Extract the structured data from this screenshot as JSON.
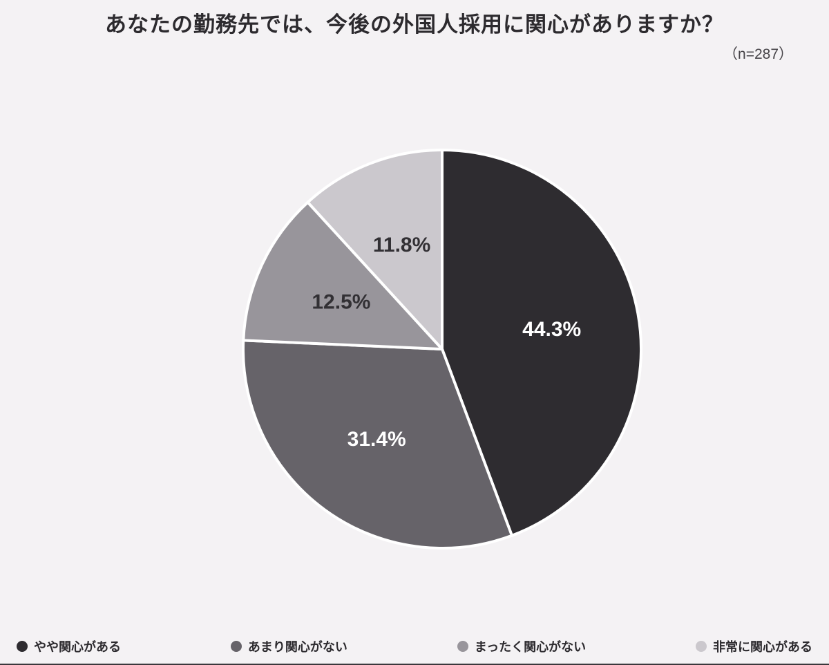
{
  "page": {
    "background_color": "#f4f2f4"
  },
  "header": {
    "title": "あなたの勤務先では、今後の外国人採用に関心がありますか？",
    "sample_size": "（n=287）"
  },
  "chart_data": {
    "type": "pie",
    "title": "あなたの勤務先では、今後の外国人採用に関心がありますか？",
    "annotation": "（n=287）",
    "labels": [
      "やや関心がある",
      "あまり関心がない",
      "まったく関心がない",
      "非常に関心がある"
    ],
    "values": [
      44.3,
      31.4,
      12.5,
      11.8
    ],
    "value_labels": [
      "44.3%",
      "31.4%",
      "12.5%",
      "11.8%"
    ],
    "colors": [
      "#2e2c30",
      "#666369",
      "#98959b",
      "#cbc8cd"
    ],
    "value_label_colors": [
      "#ffffff",
      "#ffffff",
      "#323034",
      "#323034"
    ],
    "start_angle_deg": 0,
    "direction": "clockwise",
    "slice_border_color": "#ffffff",
    "legend_position": "bottom"
  }
}
